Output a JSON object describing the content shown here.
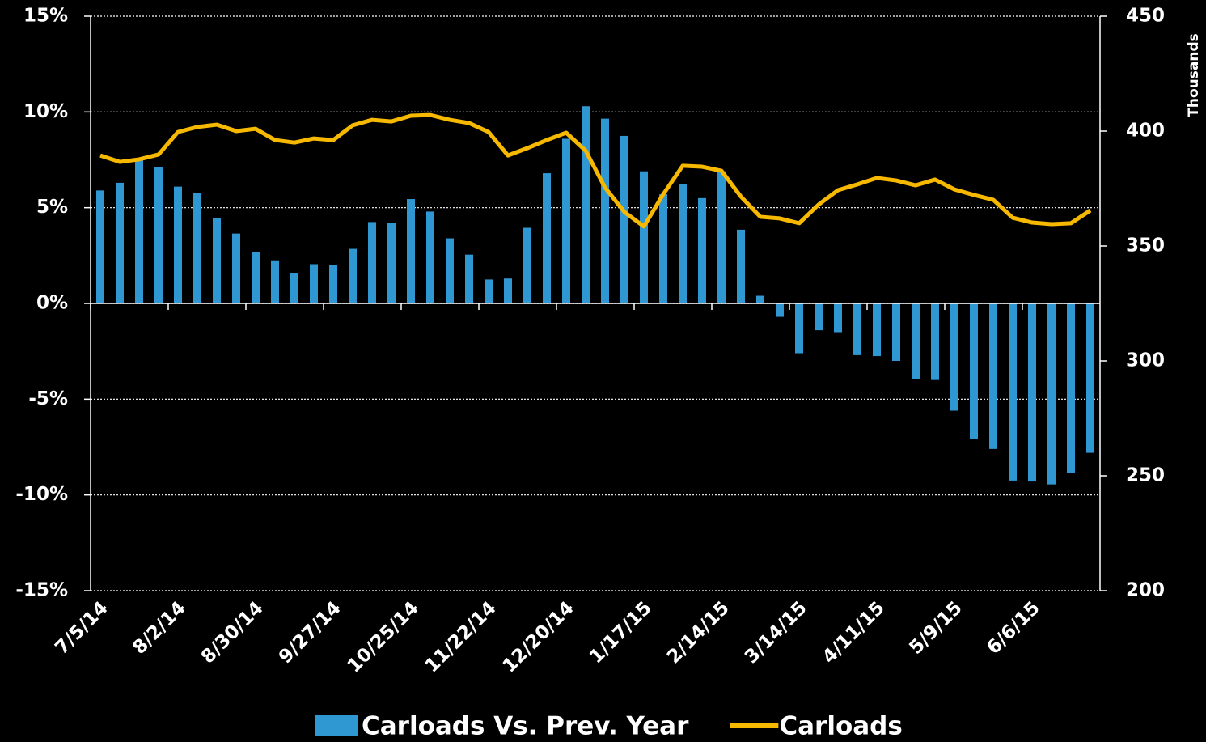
{
  "chart_data": {
    "type": "bar_line",
    "categories": [
      "7/5/14",
      null,
      null,
      null,
      "8/2/14",
      null,
      null,
      null,
      "8/30/14",
      null,
      null,
      null,
      "9/27/14",
      null,
      null,
      null,
      "10/25/14",
      null,
      null,
      null,
      "11/22/14",
      null,
      null,
      null,
      "12/20/14",
      null,
      null,
      null,
      "1/17/15",
      null,
      null,
      null,
      "2/14/15",
      null,
      null,
      null,
      "3/14/15",
      null,
      null,
      null,
      "4/11/15",
      null,
      null,
      null,
      "5/9/15",
      null,
      null,
      null,
      "6/6/15",
      null,
      null,
      null
    ],
    "series": [
      {
        "name": "Carloads Vs. Prev. Year",
        "type": "bar",
        "color": "#2f97d1",
        "axis": "y",
        "values": [
          5.9,
          6.3,
          7.5,
          7.1,
          6.1,
          5.75,
          4.45,
          3.65,
          2.7,
          2.25,
          1.6,
          2.05,
          2.0,
          2.85,
          4.25,
          4.2,
          5.45,
          4.8,
          3.4,
          2.55,
          1.25,
          1.3,
          3.95,
          6.8,
          8.6,
          10.3,
          9.65,
          8.75,
          6.9,
          5.7,
          6.25,
          5.5,
          6.9,
          3.85,
          0.4,
          -0.7,
          -2.6,
          -1.4,
          -1.5,
          -2.7,
          -2.75,
          -3.0,
          -3.95,
          -4.0,
          -5.6,
          -7.1,
          -7.6,
          -9.25,
          -9.3,
          -9.45,
          -8.85,
          -7.8
        ]
      },
      {
        "name": "Carloads",
        "type": "line",
        "color": "#f7b800",
        "axis": "y2",
        "values": [
          389.4,
          386.6,
          387.7,
          389.8,
          399.6,
          401.8,
          402.8,
          400,
          401,
          396.1,
          395,
          396.8,
          396.1,
          402.5,
          404.9,
          404.2,
          406.7,
          407,
          404.9,
          403.5,
          399.6,
          389.4,
          392.6,
          396.1,
          399.3,
          391.5,
          375.4,
          364.8,
          358.5,
          372.5,
          384.9,
          384.5,
          382.7,
          371.5,
          362.7,
          362,
          359.9,
          368,
          374.3,
          376.8,
          379.6,
          378.5,
          376.4,
          378.9,
          374.6,
          372.2,
          370.1,
          362.3,
          360.2,
          359.5,
          359.9,
          365.5
        ]
      }
    ],
    "ylim": [
      -15,
      15
    ],
    "yticks": [
      {
        "value": -15,
        "label": "-15%"
      },
      {
        "value": -10,
        "label": "-10%"
      },
      {
        "value": -5,
        "label": "-5%"
      },
      {
        "value": 0,
        "label": "0%"
      },
      {
        "value": 5,
        "label": "5%"
      },
      {
        "value": 10,
        "label": "10%"
      },
      {
        "value": 15,
        "label": "15%"
      }
    ],
    "y2lim": [
      200,
      450
    ],
    "y2ticks": [
      200,
      250,
      300,
      350,
      400,
      450
    ],
    "y2label": "Thousands",
    "grid": true,
    "legend": "bottom"
  }
}
